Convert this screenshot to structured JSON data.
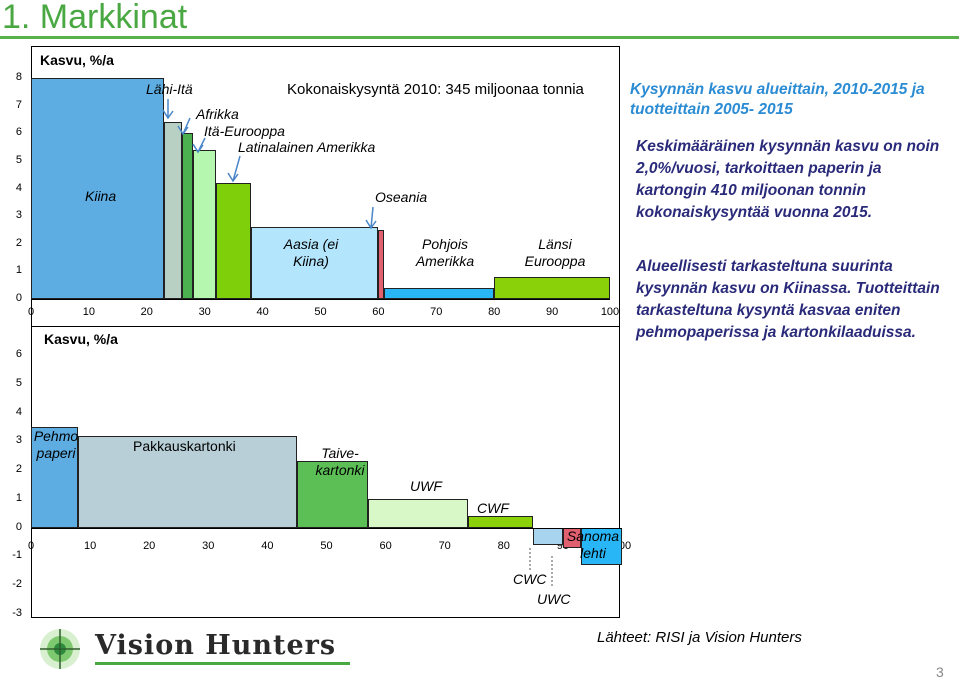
{
  "slide": {
    "title": "1. Markkinat",
    "page_number": "3",
    "source": "Lähteet: RISI ja Vision Hunters",
    "logo_text": "Vision Hunters"
  },
  "right_panel": {
    "heading": "Kysynnän kasvu alueittain, 2010-2015 ja tuotteittain 2005- 2015",
    "para1": "Keskimääräinen kysynnän kasvu on noin 2,0%/vuosi, tarkoittaen paperin ja kartongin 410 miljoonan tonnin kokonaiskysyntää  vuonna 2015.",
    "para2": "Alueellisesti tarkasteltuna suurinta kysynnän kasvu on Kiinassa. Tuotteittain tarkasteltuna kysyntä kasvaa eniten pehmopaperissa  ja kartonkilaaduissa."
  },
  "chart_data": [
    {
      "type": "bar",
      "ylabel": "Kasvu, %/a",
      "title": "Kokonaiskysyntä 2010: 345 miljoonaa tonnia",
      "ylim": [
        0,
        8
      ],
      "yticks": [
        "8",
        "7",
        "6",
        "5",
        "4",
        "3",
        "2",
        "1",
        "0"
      ],
      "xlim": [
        0,
        100
      ],
      "xticks": [
        "0",
        "10",
        "20",
        "30",
        "40",
        "50",
        "60",
        "70",
        "80",
        "90",
        "100"
      ],
      "bars": [
        {
          "name": "Kiina",
          "start": 0,
          "end": 23,
          "value": 8.0,
          "color": "#5dade2"
        },
        {
          "name": "Lähi-Itä",
          "start": 23,
          "end": 26,
          "value": 6.4,
          "color": "#b8cfc4"
        },
        {
          "name": "Afrikka",
          "start": 26,
          "end": 28,
          "value": 6.0,
          "color": "#4caf50"
        },
        {
          "name": "Itä-Eurooppa",
          "start": 28,
          "end": 32,
          "value": 5.4,
          "color": "#b6f7b0"
        },
        {
          "name": "Latinalainen Amerikka",
          "start": 32,
          "end": 38,
          "value": 4.2,
          "color": "#7fd00a"
        },
        {
          "name": "Aasia (ei Kiina)",
          "start": 38,
          "end": 60,
          "value": 2.6,
          "color": "#b3e5fc"
        },
        {
          "name": "Oseania",
          "start": 60,
          "end": 61,
          "value": 2.5,
          "color": "#e06070"
        },
        {
          "name": "Pohjois Amerikka",
          "start": 61,
          "end": 80,
          "value": 0.4,
          "color": "#29b6f6"
        },
        {
          "name": "Länsi Eurooppa",
          "start": 80,
          "end": 100,
          "value": 0.8,
          "color": "#8bd10a"
        }
      ]
    },
    {
      "type": "bar",
      "ylabel": "Kasvu, %/a",
      "ylim": [
        -3,
        6
      ],
      "yticks": [
        "6",
        "5",
        "4",
        "3",
        "2",
        "1",
        "0",
        "-1",
        "-2",
        "-3"
      ],
      "xlim": [
        0,
        100
      ],
      "xticks": [
        "0",
        "10",
        "20",
        "30",
        "40",
        "50",
        "60",
        "70",
        "80",
        "90",
        "100"
      ],
      "bars": [
        {
          "name": "Pehmo paperi",
          "start": 0,
          "end": 8,
          "value": 3.5,
          "color": "#5dade2"
        },
        {
          "name": "Pakkauskartonki",
          "start": 8,
          "end": 45,
          "value": 3.2,
          "color": "#b8cfd8"
        },
        {
          "name": "Taive-kartonki",
          "start": 45,
          "end": 57,
          "value": 2.3,
          "color": "#5cbf55"
        },
        {
          "name": "UWF",
          "start": 57,
          "end": 74,
          "value": 1.0,
          "color": "#d8f8c8"
        },
        {
          "name": "CWF",
          "start": 74,
          "end": 85,
          "value": 0.4,
          "color": "#8bd10a"
        },
        {
          "name": "CWC",
          "start": 85,
          "end": 90,
          "value": -0.6,
          "color": "#a8d4f0"
        },
        {
          "name": "UWC",
          "start": 90,
          "end": 93,
          "value": -0.7,
          "color": "#e06070"
        },
        {
          "name": "Sanoma lehti",
          "start": 93,
          "end": 100,
          "value": -1.3,
          "color": "#29b6f6"
        }
      ]
    }
  ]
}
